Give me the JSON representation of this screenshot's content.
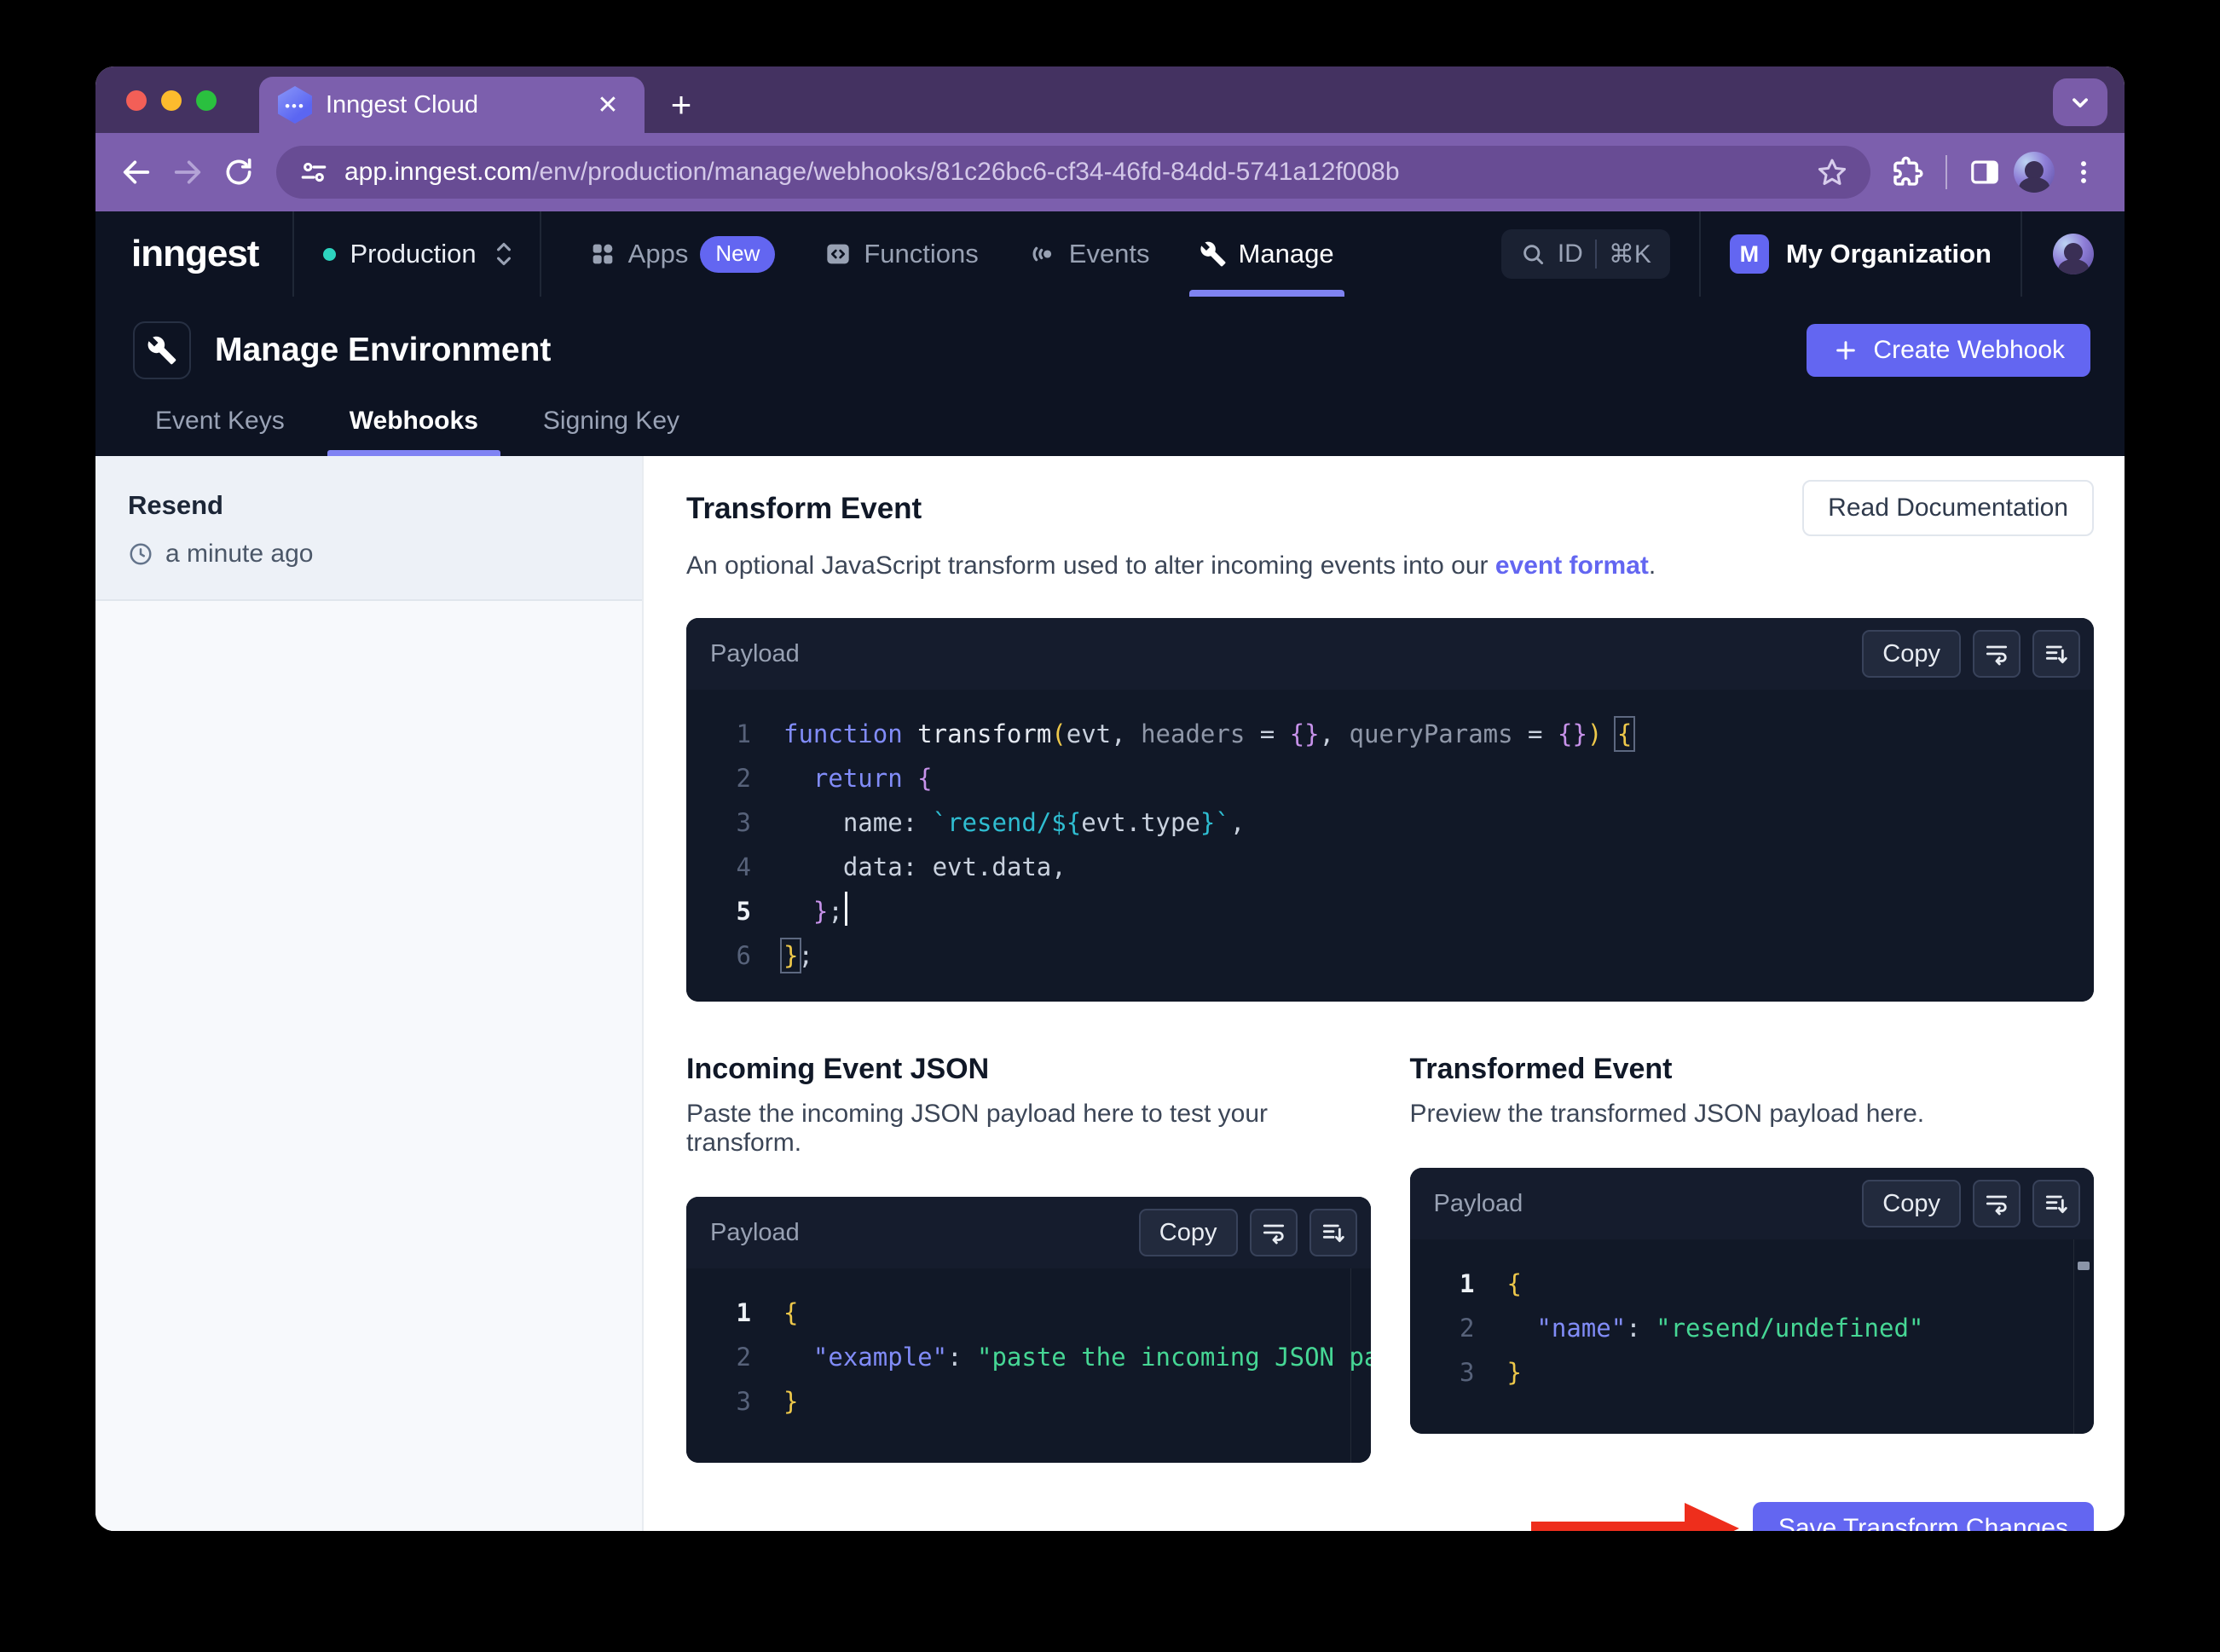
{
  "browser": {
    "tab_title": "Inngest Cloud",
    "url_host": "app.inngest.com",
    "url_path": "/env/production/manage/webhooks/81c26bc6-cf34-46fd-84dd-5741a12f008b"
  },
  "nav": {
    "logo": "inngest",
    "environment": "Production",
    "items": [
      {
        "label": "Apps",
        "badge": "New"
      },
      {
        "label": "Functions"
      },
      {
        "label": "Events"
      },
      {
        "label": "Manage"
      }
    ],
    "search": {
      "id_label": "ID",
      "shortcut": "⌘K"
    },
    "org": {
      "initial": "M",
      "name": "My Organization"
    }
  },
  "page": {
    "title": "Manage Environment",
    "tabs": [
      "Event Keys",
      "Webhooks",
      "Signing Key"
    ],
    "active_tab": "Webhooks",
    "create_button": "Create Webhook"
  },
  "sidebar": {
    "item": {
      "name": "Resend",
      "time": "a minute ago"
    }
  },
  "transform": {
    "heading": "Transform Event",
    "description_prefix": "An optional JavaScript transform used to alter incoming events into our ",
    "description_link": "event format",
    "description_suffix": ".",
    "read_docs": "Read Documentation"
  },
  "panels": {
    "payload_label": "Payload",
    "copy_label": "Copy"
  },
  "incoming": {
    "heading": "Incoming Event JSON",
    "description": "Paste the incoming JSON payload here to test your transform."
  },
  "transformed": {
    "heading": "Transformed Event",
    "description": "Preview the transformed JSON payload here."
  },
  "save_button": "Save Transform Changes",
  "editors": {
    "transform": {
      "lines": [
        {
          "num": "1",
          "active": false,
          "tokens": [
            [
              "function",
              "kw"
            ],
            [
              " ",
              "df"
            ],
            [
              "transform",
              "fn"
            ],
            [
              "(",
              "b1"
            ],
            [
              "evt",
              "df"
            ],
            [
              ", ",
              "df"
            ],
            [
              "headers",
              "pr"
            ],
            [
              " = ",
              "df"
            ],
            [
              "{}",
              "b2"
            ],
            [
              ", ",
              "df"
            ],
            [
              "queryParams",
              "pr"
            ],
            [
              " = ",
              "df"
            ],
            [
              "{}",
              "b2"
            ],
            [
              ")",
              "b1"
            ],
            [
              " ",
              "df"
            ],
            [
              "{",
              "b1 boxed"
            ]
          ]
        },
        {
          "num": "2",
          "active": false,
          "tokens": [
            [
              "  ",
              "df"
            ],
            [
              "return",
              "kw"
            ],
            [
              " ",
              "df"
            ],
            [
              "{",
              "b2"
            ]
          ]
        },
        {
          "num": "3",
          "active": false,
          "tokens": [
            [
              "    name: ",
              "df"
            ],
            [
              "`resend/",
              "str"
            ],
            [
              "${",
              "str"
            ],
            [
              "evt.type",
              "df"
            ],
            [
              "}`",
              "str"
            ],
            [
              ",",
              "df"
            ]
          ]
        },
        {
          "num": "4",
          "active": false,
          "tokens": [
            [
              "    data: evt.data,",
              "df"
            ]
          ]
        },
        {
          "num": "5",
          "active": true,
          "tokens": [
            [
              "  }",
              "b2"
            ],
            [
              ";",
              "df"
            ],
            [
              "",
              "cursor"
            ]
          ]
        },
        {
          "num": "6",
          "active": false,
          "tokens": [
            [
              "}",
              "b1 boxed"
            ],
            [
              ";",
              "df"
            ]
          ]
        }
      ]
    },
    "incoming": {
      "lines": [
        {
          "num": "1",
          "active": true,
          "tokens": [
            [
              "{",
              "b1"
            ]
          ]
        },
        {
          "num": "2",
          "active": false,
          "tokens": [
            [
              "  ",
              "df"
            ],
            [
              "\"example\"",
              "key"
            ],
            [
              ": ",
              "df"
            ],
            [
              "\"paste the incoming JSON payload here\"",
              "sval"
            ]
          ]
        },
        {
          "num": "3",
          "active": false,
          "tokens": [
            [
              "}",
              "b1"
            ]
          ]
        }
      ]
    },
    "transformed": {
      "lines": [
        {
          "num": "1",
          "active": true,
          "tokens": [
            [
              "{",
              "b1"
            ]
          ]
        },
        {
          "num": "2",
          "active": false,
          "tokens": [
            [
              "  ",
              "df"
            ],
            [
              "\"name\"",
              "key"
            ],
            [
              ": ",
              "df"
            ],
            [
              "\"resend/undefined\"",
              "sval"
            ]
          ]
        },
        {
          "num": "3",
          "active": false,
          "tokens": [
            [
              "}",
              "b1"
            ]
          ]
        }
      ]
    }
  },
  "colors": {
    "accent": "#6366f1",
    "tab_underline": "#8083f3",
    "env_dot": "#2dd4bf",
    "annotation_arrow": "#ee2e1c",
    "editor_bg": "#111827"
  },
  "icons": {
    "favicon": "inngest-hexagon",
    "toolbar": [
      "back-arrow",
      "forward-arrow",
      "reload",
      "site-settings",
      "bookmark-star",
      "extensions-puzzle",
      "side-panel",
      "profile-avatar",
      "kebab-menu"
    ],
    "nav": [
      "apps-grid",
      "functions-code",
      "events-signal",
      "manage-wrench",
      "search-magnifier"
    ],
    "panel": [
      "word-wrap",
      "align-down"
    ],
    "sidebar": [
      "clock"
    ]
  }
}
